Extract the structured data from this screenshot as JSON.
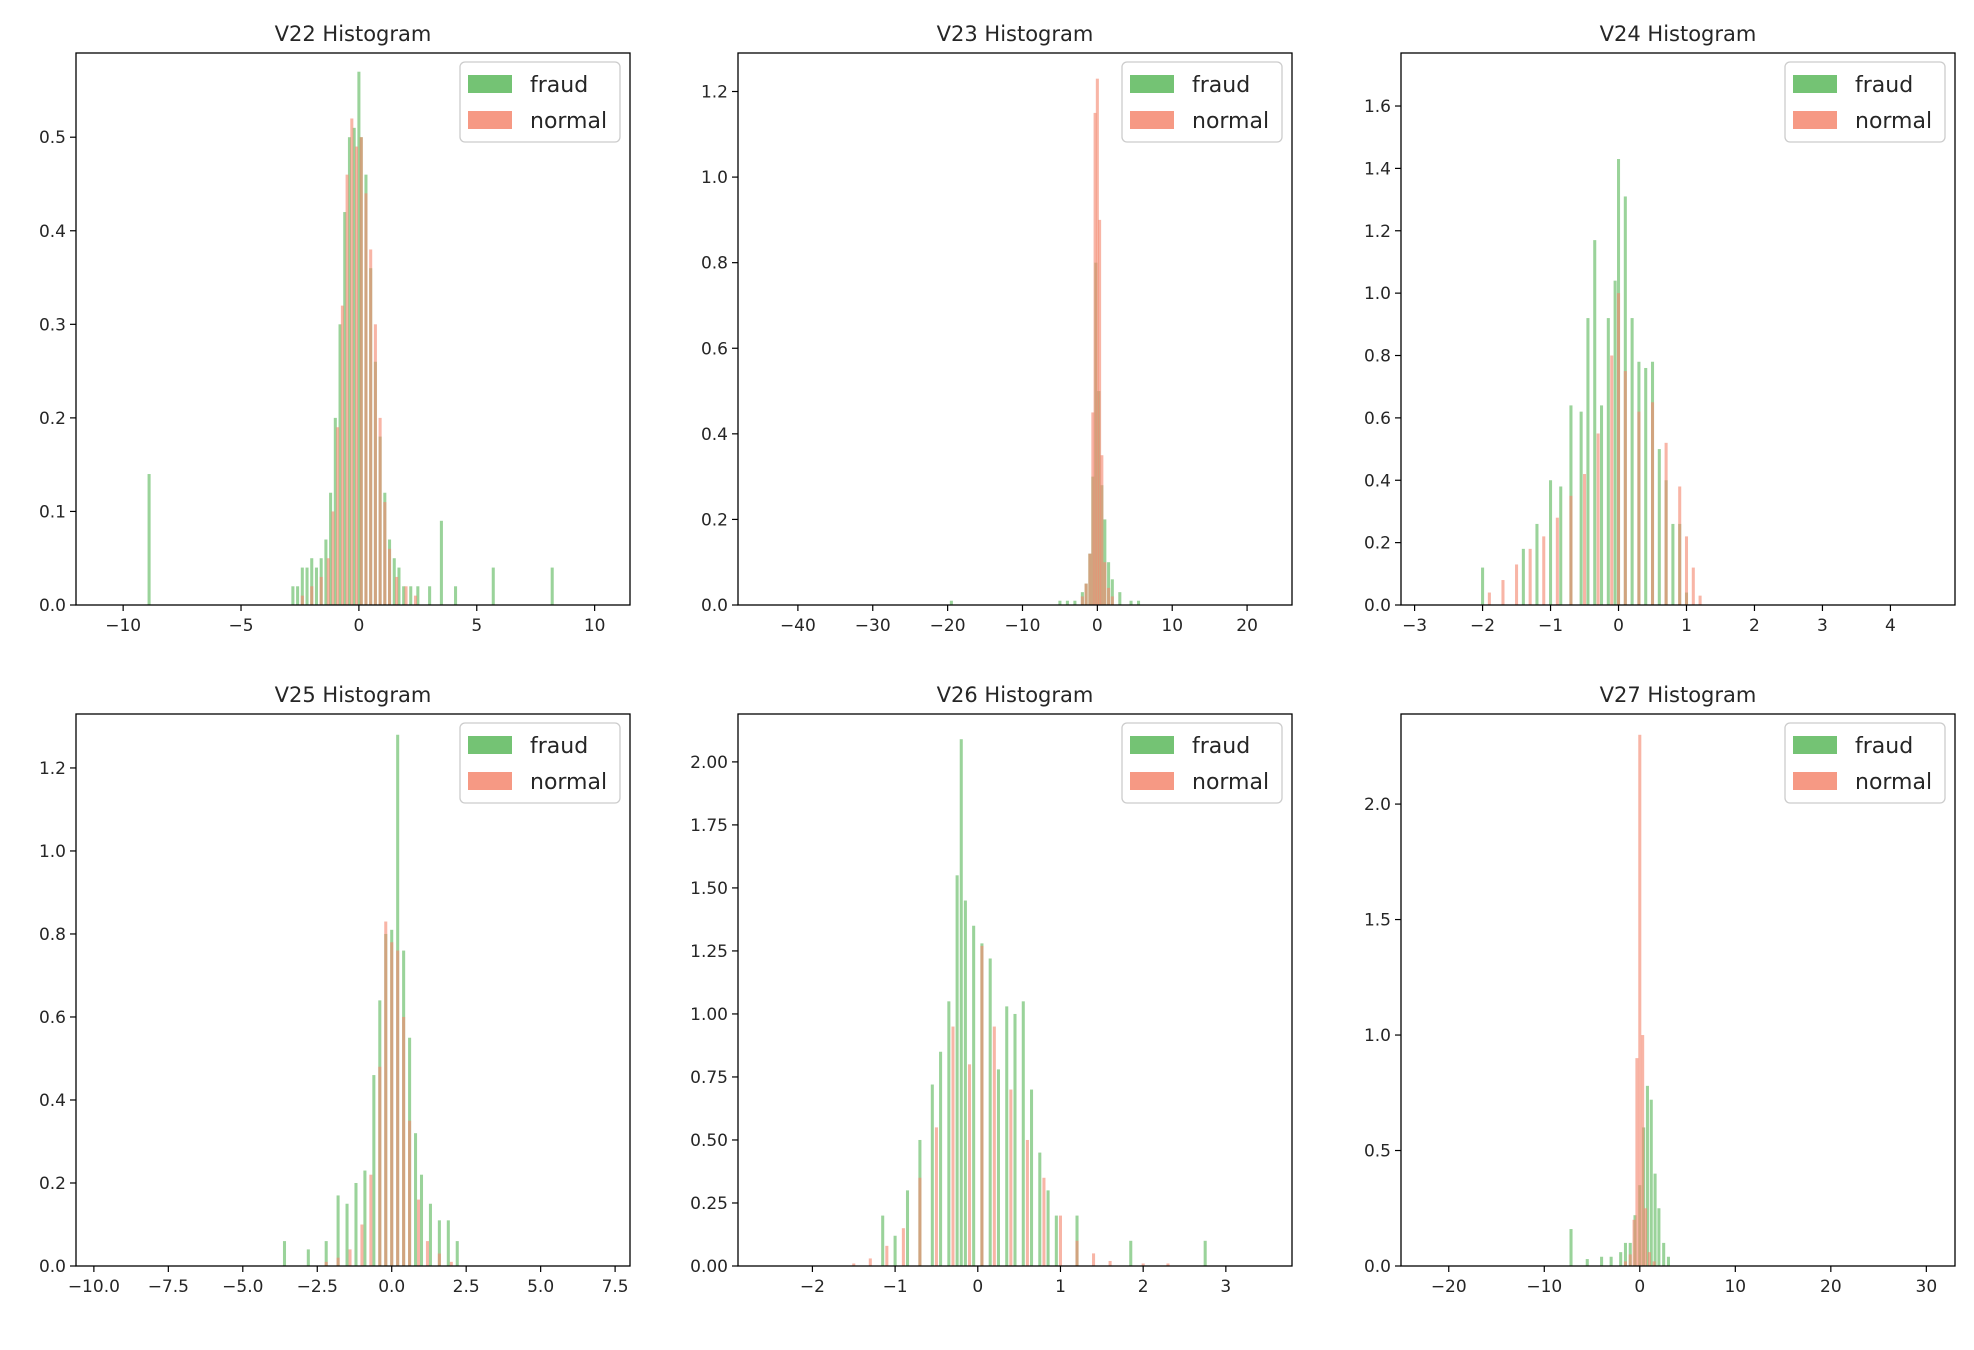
{
  "figure": {
    "legend_location": "top-right",
    "series_names": [
      "fraud",
      "normal"
    ],
    "colors": {
      "fraud": "#5cb85c",
      "normal": "#f4876f",
      "overlap": "#a68a50",
      "axis": "#000000",
      "text": "#262626"
    }
  },
  "chart_data": [
    {
      "type": "bar",
      "title": "V22 Histogram",
      "xlabel": "",
      "ylabel": "",
      "xlim": [
        -12.0,
        11.5
      ],
      "ylim": [
        0,
        0.59
      ],
      "xticks": [
        -10,
        -5,
        0,
        5,
        10
      ],
      "xtick_labels": [
        "−10",
        "−5",
        "0",
        "5",
        "10"
      ],
      "yticks": [
        0.0,
        0.1,
        0.2,
        0.3,
        0.4,
        0.5
      ],
      "ytick_labels": [
        "0.0",
        "0.1",
        "0.2",
        "0.3",
        "0.4",
        "0.5"
      ],
      "series": [
        {
          "name": "fraud",
          "x": [
            -8.9,
            -2.8,
            -2.6,
            -2.4,
            -2.2,
            -2.0,
            -1.8,
            -1.6,
            -1.4,
            -1.2,
            -1.0,
            -0.8,
            -0.6,
            -0.4,
            -0.2,
            0.0,
            0.1,
            0.3,
            0.5,
            0.7,
            0.9,
            1.1,
            1.3,
            1.5,
            1.7,
            1.9,
            2.2,
            2.5,
            3.0,
            3.5,
            4.1,
            5.7,
            8.2
          ],
          "values": [
            0.14,
            0.02,
            0.02,
            0.04,
            0.04,
            0.05,
            0.04,
            0.05,
            0.07,
            0.12,
            0.2,
            0.3,
            0.42,
            0.5,
            0.51,
            0.57,
            0.5,
            0.46,
            0.36,
            0.26,
            0.18,
            0.12,
            0.07,
            0.05,
            0.04,
            0.02,
            0.02,
            0.02,
            0.02,
            0.09,
            0.02,
            0.04,
            0.04
          ]
        },
        {
          "name": "normal",
          "x": [
            -2.4,
            -2.0,
            -1.6,
            -1.3,
            -1.1,
            -0.9,
            -0.7,
            -0.5,
            -0.3,
            -0.1,
            0.1,
            0.3,
            0.5,
            0.7,
            0.9,
            1.1,
            1.3,
            1.6,
            2.0,
            2.4
          ],
          "values": [
            0.01,
            0.02,
            0.03,
            0.05,
            0.1,
            0.19,
            0.32,
            0.46,
            0.52,
            0.49,
            0.5,
            0.44,
            0.38,
            0.3,
            0.2,
            0.11,
            0.06,
            0.03,
            0.02,
            0.01
          ]
        }
      ]
    },
    {
      "type": "bar",
      "title": "V23 Histogram",
      "xlabel": "",
      "ylabel": "",
      "xlim": [
        -48,
        26
      ],
      "ylim": [
        0,
        1.29
      ],
      "xticks": [
        -40,
        -30,
        -20,
        -10,
        0,
        10,
        20
      ],
      "xtick_labels": [
        "−40",
        "−30",
        "−20",
        "−10",
        "0",
        "10",
        "20"
      ],
      "yticks": [
        0.0,
        0.2,
        0.4,
        0.6,
        0.8,
        1.0,
        1.2
      ],
      "ytick_labels": [
        "0.0",
        "0.2",
        "0.4",
        "0.6",
        "0.8",
        "1.0",
        "1.2"
      ],
      "series": [
        {
          "name": "fraud",
          "x": [
            -19.5,
            -5.0,
            -4.0,
            -3.0,
            -2.0,
            -1.5,
            -1.0,
            -0.6,
            -0.2,
            0.2,
            0.6,
            1.0,
            1.5,
            2.0,
            3.0,
            4.5,
            5.5
          ],
          "values": [
            0.01,
            0.01,
            0.01,
            0.01,
            0.03,
            0.05,
            0.12,
            0.3,
            0.8,
            0.5,
            0.28,
            0.2,
            0.1,
            0.06,
            0.03,
            0.01,
            0.01
          ]
        },
        {
          "name": "normal",
          "x": [
            -2.0,
            -1.5,
            -1.0,
            -0.6,
            -0.3,
            0.0,
            0.3,
            0.6,
            1.0,
            1.5,
            2.0
          ],
          "values": [
            0.02,
            0.05,
            0.12,
            0.45,
            1.15,
            1.23,
            0.9,
            0.35,
            0.1,
            0.04,
            0.02
          ]
        }
      ]
    },
    {
      "type": "bar",
      "title": "V24 Histogram",
      "xlabel": "",
      "ylabel": "",
      "xlim": [
        -3.2,
        4.95
      ],
      "ylim": [
        0,
        1.77
      ],
      "xticks": [
        -3,
        -2,
        -1,
        0,
        1,
        2,
        3,
        4
      ],
      "xtick_labels": [
        "−3",
        "−2",
        "−1",
        "0",
        "1",
        "2",
        "3",
        "4"
      ],
      "yticks": [
        0.0,
        0.2,
        0.4,
        0.6,
        0.8,
        1.0,
        1.2,
        1.4,
        1.6
      ],
      "ytick_labels": [
        "0.0",
        "0.2",
        "0.4",
        "0.6",
        "0.8",
        "1.0",
        "1.2",
        "1.4",
        "1.6"
      ],
      "series": [
        {
          "name": "fraud",
          "x": [
            -2.0,
            -1.4,
            -1.2,
            -1.0,
            -0.85,
            -0.7,
            -0.55,
            -0.45,
            -0.35,
            -0.25,
            -0.15,
            -0.05,
            0.0,
            0.1,
            0.2,
            0.3,
            0.4,
            0.5,
            0.6,
            0.7,
            0.8,
            0.9,
            1.0
          ],
          "values": [
            0.12,
            0.18,
            0.26,
            0.4,
            0.38,
            0.64,
            0.62,
            0.92,
            1.17,
            0.64,
            0.92,
            1.04,
            1.43,
            1.31,
            0.92,
            0.78,
            0.76,
            0.78,
            0.5,
            0.4,
            0.26,
            0.26,
            0.04
          ]
        },
        {
          "name": "normal",
          "x": [
            -1.9,
            -1.7,
            -1.5,
            -1.3,
            -1.1,
            -0.9,
            -0.7,
            -0.5,
            -0.3,
            -0.1,
            0.0,
            0.1,
            0.3,
            0.5,
            0.7,
            0.9,
            1.0,
            1.1,
            1.2
          ],
          "values": [
            0.04,
            0.08,
            0.13,
            0.18,
            0.22,
            0.28,
            0.35,
            0.42,
            0.55,
            0.8,
            1.0,
            0.75,
            0.62,
            0.65,
            0.52,
            0.38,
            0.22,
            0.12,
            0.03
          ]
        }
      ]
    },
    {
      "type": "bar",
      "title": "V25 Histogram",
      "xlabel": "",
      "ylabel": "",
      "xlim": [
        -10.6,
        8.0
      ],
      "ylim": [
        0,
        1.33
      ],
      "xticks": [
        -10.0,
        -7.5,
        -5.0,
        -2.5,
        0.0,
        2.5,
        5.0,
        7.5
      ],
      "xtick_labels": [
        "−10.0",
        "−7.5",
        "−5.0",
        "−2.5",
        "0.0",
        "2.5",
        "5.0",
        "7.5"
      ],
      "yticks": [
        0.0,
        0.2,
        0.4,
        0.6,
        0.8,
        1.0,
        1.2
      ],
      "ytick_labels": [
        "0.0",
        "0.2",
        "0.4",
        "0.6",
        "0.8",
        "1.0",
        "1.2"
      ],
      "series": [
        {
          "name": "fraud",
          "x": [
            -3.6,
            -2.8,
            -2.2,
            -1.8,
            -1.5,
            -1.2,
            -0.9,
            -0.6,
            -0.4,
            -0.2,
            0.0,
            0.2,
            0.4,
            0.6,
            0.8,
            1.0,
            1.3,
            1.6,
            1.9,
            2.2
          ],
          "values": [
            0.06,
            0.04,
            0.06,
            0.17,
            0.15,
            0.2,
            0.23,
            0.46,
            0.64,
            0.8,
            0.81,
            1.28,
            0.76,
            0.55,
            0.32,
            0.22,
            0.15,
            0.11,
            0.11,
            0.06
          ]
        },
        {
          "name": "normal",
          "x": [
            -2.2,
            -1.8,
            -1.4,
            -1.0,
            -0.7,
            -0.4,
            -0.2,
            0.0,
            0.2,
            0.4,
            0.6,
            0.9,
            1.2,
            1.6,
            2.0
          ],
          "values": [
            0.01,
            0.02,
            0.04,
            0.1,
            0.22,
            0.48,
            0.83,
            0.78,
            0.76,
            0.6,
            0.35,
            0.16,
            0.06,
            0.03,
            0.01
          ]
        }
      ]
    },
    {
      "type": "bar",
      "title": "V26 Histogram",
      "xlabel": "",
      "ylabel": "",
      "xlim": [
        -2.9,
        3.8
      ],
      "ylim": [
        0,
        2.19
      ],
      "xticks": [
        -2,
        -1,
        0,
        1,
        2,
        3
      ],
      "xtick_labels": [
        "−2",
        "−1",
        "0",
        "1",
        "2",
        "3"
      ],
      "yticks": [
        0.0,
        0.25,
        0.5,
        0.75,
        1.0,
        1.25,
        1.5,
        1.75,
        2.0
      ],
      "ytick_labels": [
        "0.00",
        "0.25",
        "0.50",
        "0.75",
        "1.00",
        "1.25",
        "1.50",
        "1.75",
        "2.00"
      ],
      "series": [
        {
          "name": "fraud",
          "x": [
            -1.15,
            -1.0,
            -0.85,
            -0.7,
            -0.55,
            -0.45,
            -0.35,
            -0.25,
            -0.2,
            -0.15,
            -0.05,
            0.05,
            0.15,
            0.25,
            0.35,
            0.45,
            0.55,
            0.65,
            0.75,
            0.85,
            0.95,
            1.2,
            1.85,
            2.75
          ],
          "values": [
            0.2,
            0.12,
            0.3,
            0.5,
            0.72,
            0.85,
            1.05,
            1.55,
            2.09,
            1.45,
            1.35,
            1.28,
            1.22,
            0.78,
            1.03,
            1.0,
            1.05,
            0.7,
            0.45,
            0.3,
            0.2,
            0.2,
            0.1,
            0.1
          ]
        },
        {
          "name": "normal",
          "x": [
            -1.5,
            -1.3,
            -1.1,
            -0.9,
            -0.7,
            -0.5,
            -0.3,
            -0.1,
            0.05,
            0.2,
            0.4,
            0.6,
            0.8,
            1.0,
            1.2,
            1.4,
            1.6,
            2.0,
            2.3
          ],
          "values": [
            0.01,
            0.03,
            0.08,
            0.15,
            0.35,
            0.55,
            0.95,
            0.8,
            1.27,
            0.95,
            0.7,
            0.5,
            0.35,
            0.2,
            0.1,
            0.05,
            0.02,
            0.01,
            0.01
          ]
        }
      ]
    },
    {
      "type": "bar",
      "title": "V27 Histogram",
      "xlabel": "",
      "ylabel": "",
      "xlim": [
        -25,
        33
      ],
      "ylim": [
        0,
        2.39
      ],
      "xticks": [
        -20,
        -10,
        0,
        10,
        20,
        30
      ],
      "xtick_labels": [
        "−20",
        "−10",
        "0",
        "10",
        "20",
        "30"
      ],
      "yticks": [
        0.0,
        0.5,
        1.0,
        1.5,
        2.0
      ],
      "ytick_labels": [
        "0.0",
        "0.5",
        "1.0",
        "1.5",
        "2.0"
      ],
      "series": [
        {
          "name": "fraud",
          "x": [
            -7.2,
            -5.5,
            -4.0,
            -3.0,
            -2.0,
            -1.5,
            -1.0,
            -0.5,
            0.0,
            0.4,
            0.8,
            1.2,
            1.6,
            2.0,
            2.5,
            3.0
          ],
          "values": [
            0.16,
            0.03,
            0.04,
            0.04,
            0.06,
            0.1,
            0.1,
            0.22,
            0.35,
            0.6,
            0.78,
            0.72,
            0.4,
            0.25,
            0.1,
            0.04
          ]
        },
        {
          "name": "normal",
          "x": [
            -1.5,
            -1.0,
            -0.6,
            -0.3,
            0.0,
            0.3,
            0.6,
            1.0,
            1.5
          ],
          "values": [
            0.02,
            0.05,
            0.2,
            0.9,
            2.3,
            1.0,
            0.25,
            0.06,
            0.02
          ]
        }
      ]
    }
  ]
}
